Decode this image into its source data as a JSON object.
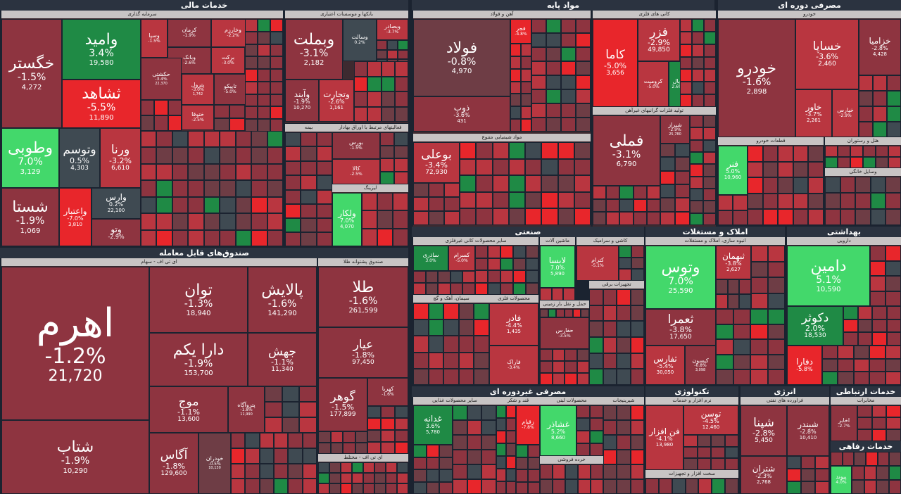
{
  "colors": {
    "strong_red": "#e8262b",
    "red": "#b93640",
    "dark_red": "#8e3440",
    "muted": "#6e3d45",
    "neutral": "#3f4a52",
    "green": "#1f8a45",
    "bright_green": "#43d86b"
  },
  "sections": {
    "financial": "خدمات مالی",
    "base_materials": "مواد پایه",
    "durable_consumer": "مصرفی دوره ای",
    "funds": "صندوق‌های قابل معامله",
    "industry": "صنعتی",
    "real_estate": "املاک و مستغلات",
    "health": "بهداشتی",
    "non_durable": "مصرفی غیردوره ای",
    "technology": "تکنولوژی",
    "energy": "انرژی",
    "telecom": "خدمات ارتباطی",
    "welfare": "خدمات رفاهی"
  },
  "groups": {
    "investment": "سرمایه گذاری",
    "banks": "بانکها و موسسات اعتباری",
    "insurance": "بیمه",
    "financial_other": "فعالیتهای مرتبط با اوراق بهادار",
    "leasing": "لیزینگ",
    "steel": "آهن و فولاد",
    "nonmetal_minerals": "کانی های فلزی",
    "base_metals": "تولید فلزات گرانبهای غیرآهن",
    "chemicals": "مواد شیمیایی متنوع",
    "auto": "خودرو",
    "auto_parts": "قطعات خودرو",
    "hotel": "هتل و رستوران",
    "home_appliances": "وسایل خانگی",
    "etf_stocks": "ای تی اف - سهام",
    "gold_funds": "صندوق پشتوانه طلا",
    "etf_fixed": "ای تی اف - مختلط",
    "commodity": "کالا",
    "metal_products": "سایر محصولات کانی غیرفلزی",
    "machinery": "ماشین آلات",
    "ceramics": "کاشی و سرامیک",
    "cement": "سیمان، آهک و گچ",
    "metal_goods": "محصولات فلزی",
    "transport": "حمل و نقل بار زمینی",
    "contracting": "پیمانکاری صنعتی",
    "electrical": "تجهیزات برقی",
    "construction": "انبوه سازی، املاک و مستغلات",
    "pharma": "دارویی",
    "food_other": "سایر محصولات غذایی",
    "sugar": "قند و شکر",
    "dairy": "محصولات لبنی",
    "retail": "خرده فروشی",
    "pharma_ret": "شیرینیجات",
    "software": "نرم افزار و خدمات",
    "hardware": "سخت افزار و تجهیزات",
    "refining": "فراورده های نفتی",
    "mobile": "مخابرات"
  },
  "tiles": {
    "khegostar": {
      "name": "خگستر",
      "pct": "-1.5%",
      "val": "4,272"
    },
    "vamid": {
      "name": "وامید",
      "pct": "3.4%",
      "val": "19,580"
    },
    "shahed": {
      "name": "ثشاهد",
      "pct": "-5.5%",
      "val": "11,890"
    },
    "vatoosm": {
      "name": "وتوسم",
      "pct": "0.5%",
      "val": "4,303"
    },
    "vetoopi": {
      "name": "وطوبی",
      "pct": "7.0%",
      "val": "3,129"
    },
    "varna": {
      "name": "ورنا",
      "pct": "-3.2%",
      "val": "6,610"
    },
    "shasta": {
      "name": "شستا",
      "pct": "-1.9%",
      "val": "1,069"
    },
    "vaetebar": {
      "name": "واعتبار",
      "pct": "-7.0%",
      "val": "3,810"
    },
    "vares": {
      "name": "وارس",
      "pct": "0.2%",
      "val": "22,100"
    },
    "vatoo": {
      "name": "وتو",
      "pct": "-2.9%",
      "val": ""
    },
    "vebmelat": {
      "name": "وبملت",
      "pct": "-3.1%",
      "val": "2,182"
    },
    "vesadr": {
      "name": "وبصادر",
      "pct": "-3.7%",
      "val": ""
    },
    "vesalt": {
      "name": "وسالت",
      "pct": "0.2%",
      "val": ""
    },
    "veyaved": {
      "name": "وآیند",
      "pct": "-1.9%",
      "val": "10,270"
    },
    "vetejarat": {
      "name": "وتجارت",
      "pct": "-2.6%",
      "val": "1,161"
    },
    "bourse": {
      "name": "بورس",
      "pct": "-1.5%",
      "val": ""
    },
    "kala": {
      "name": "کالا",
      "pct": "-2.5%",
      "val": ""
    },
    "vakar": {
      "name": "ولکار",
      "pct": "7.0%",
      "val": "4,070"
    },
    "foolad": {
      "name": "فولاد",
      "pct": "-0.8%",
      "val": "4,970"
    },
    "zob": {
      "name": "ذوب",
      "pct": "-3.6%",
      "val": "431"
    },
    "fajr": {
      "name": "فجر",
      "pct": "-4.8%",
      "val": ""
    },
    "fezar": {
      "name": "فزر",
      "pct": "-2.9%",
      "val": "49,850"
    },
    "kama": {
      "name": "کاما",
      "pct": "-5.0%",
      "val": "3,656"
    },
    "kromit": {
      "name": "کرومیت",
      "pct": "-5.0%",
      "val": ""
    },
    "ival": {
      "name": "ایال",
      "pct": "2.6%",
      "val": ""
    },
    "fameli": {
      "name": "فملی",
      "pct": "-3.1%",
      "val": "6,790"
    },
    "shiraz": {
      "name": "شیراز",
      "pct": "-2.9%",
      "val": "25,780"
    },
    "bouali": {
      "name": "بوعلی",
      "pct": "-3.4%",
      "val": "72,930"
    },
    "khodro": {
      "name": "خودرو",
      "pct": "-1.6%",
      "val": "2,898"
    },
    "khasapa": {
      "name": "خساپا",
      "pct": "-3.6%",
      "val": "2,460"
    },
    "khazamia": {
      "name": "خزامیا",
      "pct": "-2.8%",
      "val": "4,428"
    },
    "khavar": {
      "name": "خاور",
      "pct": "-3.7%",
      "val": "2,261"
    },
    "khapars": {
      "name": "خپارس",
      "pct": "-2.9%",
      "val": ""
    },
    "fanar": {
      "name": "فنر",
      "pct": "5.0%",
      "val": "10,960"
    },
    "ahrom": {
      "name": "اهرم",
      "pct": "-1.2%",
      "val": "21,720"
    },
    "tavan": {
      "name": "توان",
      "pct": "-1.3%",
      "val": "18,940"
    },
    "palayesh": {
      "name": "پالایش",
      "pct": "-1.6%",
      "val": "141,290"
    },
    "darayekom": {
      "name": "دارا یکم",
      "pct": "-1.9%",
      "val": "153,700"
    },
    "jahesh": {
      "name": "جهش",
      "pct": "-1.1%",
      "val": "11,340"
    },
    "moj": {
      "name": "موج",
      "pct": "-1.1%",
      "val": "13,600"
    },
    "petroagah": {
      "name": "پتروآگاه",
      "pct": "-1.8%",
      "val": "11,990"
    },
    "agas": {
      "name": "آگاس",
      "pct": "-1.8%",
      "val": "129,600"
    },
    "khodran": {
      "name": "خودران",
      "pct": "-0.5%",
      "val": "10,130"
    },
    "shetab": {
      "name": "شتاب",
      "pct": "-1.9%",
      "val": "10,290"
    },
    "tala": {
      "name": "طلا",
      "pct": "-1.6%",
      "val": "261,599"
    },
    "ayar": {
      "name": "عیار",
      "pct": "-1.8%",
      "val": "97,450"
    },
    "gohar": {
      "name": "گوهر",
      "pct": "-1.5%",
      "val": "177,899"
    },
    "kahroba": {
      "name": "کهربا",
      "pct": "-1.6%",
      "val": ""
    },
    "sadra": {
      "name": "ساذری",
      "pct": "3.0%",
      "val": ""
    },
    "kasram": {
      "name": "کسرام",
      "pct": "-5.0%",
      "val": ""
    },
    "lapisa": {
      "name": "لابسا",
      "pct": "7.0%",
      "val": "5,890"
    },
    "ketram": {
      "name": "کترام",
      "pct": "-5.1%",
      "val": ""
    },
    "fader": {
      "name": "فادر",
      "pct": "-4.4%",
      "val": "1,435"
    },
    "farak": {
      "name": "فاراک",
      "pct": "-3.4%",
      "val": ""
    },
    "hafari": {
      "name": "حفارس",
      "pct": "-3.5%",
      "val": ""
    },
    "vatoos": {
      "name": "وتوس",
      "pct": "7.0%",
      "val": "25,590"
    },
    "tabahman": {
      "name": "ثبهمان",
      "pct": "-3.8%",
      "val": "2,627"
    },
    "tamrad": {
      "name": "ثعمرا",
      "pct": "-3.8%",
      "val": "17,650"
    },
    "tefars": {
      "name": "ثفارس",
      "pct": "-5.4%",
      "val": "30,050"
    },
    "kisun": {
      "name": "کیسون",
      "pct": "-0.8%",
      "val": "3,098"
    },
    "damin": {
      "name": "دامین",
      "pct": "5.1%",
      "val": "10,590"
    },
    "dekoosar": {
      "name": "دکوثر",
      "pct": "2.0%",
      "val": "18,530"
    },
    "defara": {
      "name": "دفارا",
      "pct": "-5.8%",
      "val": ""
    },
    "ghadaneh": {
      "name": "غدانه",
      "pct": "3.6%",
      "val": "5,780"
    },
    "zagham": {
      "name": "زقیام",
      "pct": "-7.8%",
      "val": ""
    },
    "ghashar": {
      "name": "غشاذر",
      "pct": "5.2%",
      "val": "8,660"
    },
    "fanafzar": {
      "name": "فن افزار",
      "pct": "-4.1%",
      "val": "13,980"
    },
    "toosan": {
      "name": "توسن",
      "pct": "-4.5%",
      "val": "12,460"
    },
    "shapna": {
      "name": "شپنا",
      "pct": "-2.8%",
      "val": "5,450"
    },
    "shabandar": {
      "name": "شبندر",
      "pct": "-2.8%",
      "val": "10,410"
    },
    "shtran": {
      "name": "شتران",
      "pct": "-2.3%",
      "val": "2,768"
    },
    "akhaber": {
      "name": "اخابر",
      "pct": "-2.7%",
      "val": ""
    },
    "peivand": {
      "name": "پیوند",
      "pct": "4.0%",
      "val": ""
    },
    "sayla": {
      "name": "وسپا",
      "pct": "-1.5%",
      "val": ""
    },
    "kerman": {
      "name": "کرمان",
      "pct": "-1.9%",
      "val": ""
    },
    "khazarm": {
      "name": "وخارزم",
      "pct": "-2.2%",
      "val": ""
    },
    "hekmat": {
      "name": "حکشتی",
      "pct": "-3.4%",
      "val": "22,370"
    },
    "petrol": {
      "name": "پترول",
      "pct": "-3.0%",
      "val": "1,742"
    },
    "tapiko": {
      "name": "تاپیکو",
      "pct": "-5.0%",
      "val": ""
    },
    "khatgha": {
      "name": "ختوقا",
      "pct": "-2.5%",
      "val": ""
    },
    "boreket": {
      "name": "برکت",
      "pct": "-3.0%",
      "val": ""
    },
    "vebank": {
      "name": "وبانک",
      "pct": "-2.6%",
      "val": ""
    }
  }
}
